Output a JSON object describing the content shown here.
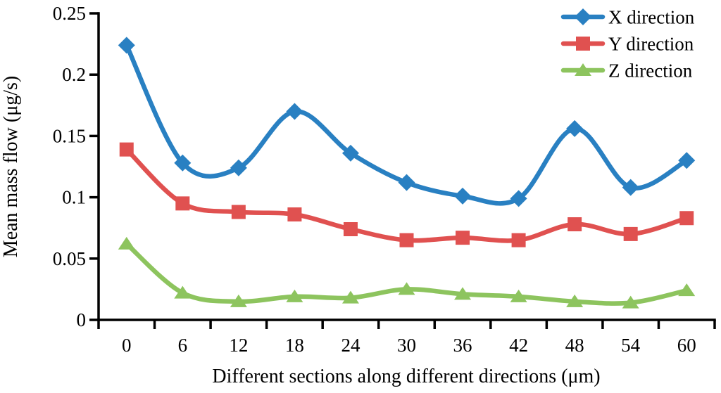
{
  "chart_data": {
    "type": "line",
    "title": "",
    "xlabel": "Different sections along different directions (μm)",
    "ylabel": "Mean mass flow (μg/s)",
    "x": [
      0,
      6,
      12,
      18,
      24,
      30,
      36,
      42,
      48,
      54,
      60
    ],
    "xtick_labels": [
      "0",
      "6",
      "12",
      "18",
      "24",
      "30",
      "36",
      "42",
      "48",
      "54",
      "60"
    ],
    "ylim": [
      0,
      0.25
    ],
    "yticks": [
      0,
      0.05,
      0.1,
      0.15,
      0.2,
      0.25
    ],
    "ytick_labels": [
      "0",
      "0.05",
      "0.1",
      "0.15",
      "0.2",
      "0.25"
    ],
    "grid": false,
    "line_smoothing": true,
    "legend_position": "top-right",
    "series": [
      {
        "name": "X direction",
        "marker": "diamond",
        "color": "#2980C2",
        "values": [
          0.224,
          0.128,
          0.124,
          0.17,
          0.136,
          0.112,
          0.101,
          0.099,
          0.156,
          0.108,
          0.13
        ]
      },
      {
        "name": "Y direction",
        "marker": "square",
        "color": "#E05150",
        "values": [
          0.139,
          0.095,
          0.088,
          0.086,
          0.074,
          0.065,
          0.067,
          0.065,
          0.078,
          0.07,
          0.083
        ]
      },
      {
        "name": "Z direction",
        "marker": "triangle",
        "color": "#8DC45E",
        "values": [
          0.062,
          0.022,
          0.015,
          0.019,
          0.018,
          0.025,
          0.021,
          0.019,
          0.015,
          0.014,
          0.024
        ]
      }
    ]
  },
  "colors": {
    "axis": "#000000",
    "text": "#000000",
    "background": "#ffffff"
  }
}
